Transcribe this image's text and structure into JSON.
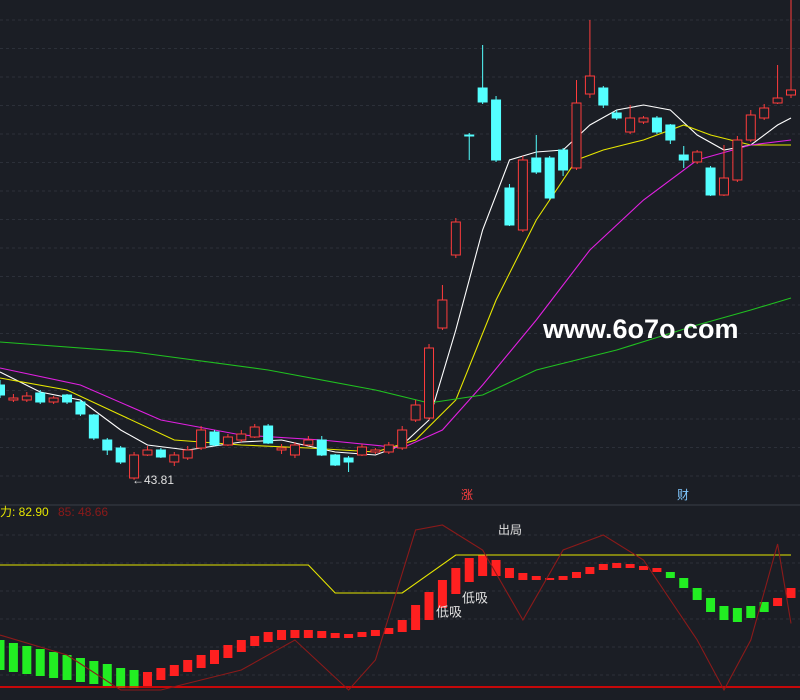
{
  "labels": {
    "low": "←43.81",
    "event1": "涨",
    "event2": "财",
    "watermark": "www.6o7o.com",
    "ind1": "力: 82.90",
    "ind2": "85: 48.66",
    "exit": "出局",
    "buy1": "低吸",
    "buy2": "低吸"
  },
  "chart_data": [
    {
      "type": "candlestick",
      "up_color": "#ff3c3c",
      "down_color": "#54ffff",
      "ylim": [
        42.8,
        67.8
      ],
      "open": [
        48.55,
        47.8,
        47.8,
        48.15,
        47.7,
        48.05,
        47.7,
        47.05,
        45.8,
        45.4,
        43.9,
        45.05,
        45.3,
        44.7,
        44.9,
        45.4,
        46.2,
        45.55,
        45.8,
        45.95,
        46.5,
        45.3,
        45.05,
        45.55,
        45.8,
        45.05,
        44.9,
        45.05,
        45.2,
        45.2,
        45.4,
        46.8,
        46.9,
        51.4,
        55.05,
        61.05,
        63.4,
        62.8,
        58.4,
        56.3,
        59.9,
        59.9,
        60.3,
        59.4,
        63.1,
        63.4,
        62.15,
        61.2,
        61.7,
        61.9,
        61.55,
        60.05,
        59.7,
        59.4,
        58.05,
        58.8,
        60.8,
        61.9,
        62.65,
        63.05
      ],
      "close": [
        48.05,
        47.9,
        48.0,
        47.7,
        47.9,
        47.7,
        47.1,
        45.9,
        45.3,
        44.7,
        45.05,
        45.3,
        44.95,
        45.05,
        45.3,
        46.3,
        45.55,
        45.95,
        46.1,
        46.45,
        45.65,
        45.4,
        45.55,
        45.8,
        45.05,
        44.55,
        44.7,
        45.45,
        45.3,
        45.55,
        46.3,
        47.55,
        50.4,
        52.8,
        56.7,
        61.0,
        62.7,
        59.8,
        56.55,
        59.8,
        59.2,
        57.9,
        59.3,
        62.65,
        64.0,
        62.55,
        61.9,
        61.9,
        61.9,
        61.2,
        60.8,
        59.8,
        60.2,
        58.05,
        58.9,
        60.8,
        62.05,
        62.4,
        62.9,
        63.3
      ],
      "high": [
        48.8,
        48.1,
        48.2,
        48.3,
        48.0,
        48.1,
        47.8,
        47.1,
        45.9,
        45.5,
        45.2,
        45.5,
        45.4,
        45.2,
        45.5,
        46.5,
        46.3,
        46.1,
        46.3,
        46.6,
        46.6,
        45.6,
        45.7,
        46.0,
        46.0,
        45.1,
        45.0,
        45.6,
        45.4,
        45.7,
        46.5,
        47.8,
        50.6,
        53.55,
        56.9,
        61.15,
        65.55,
        63.0,
        58.6,
        60.0,
        61.05,
        60.0,
        60.4,
        63.8,
        66.8,
        63.5,
        62.3,
        62.55,
        62.0,
        62.0,
        61.6,
        60.5,
        60.3,
        59.5,
        60.55,
        61.0,
        62.3,
        62.6,
        64.55,
        67.8
      ],
      "low": [
        47.9,
        47.7,
        47.7,
        47.6,
        47.6,
        47.6,
        47.0,
        45.8,
        45.05,
        44.6,
        43.81,
        45.0,
        44.9,
        44.5,
        44.8,
        45.3,
        45.5,
        45.5,
        45.7,
        45.9,
        45.6,
        45.1,
        44.9,
        45.5,
        45.0,
        44.5,
        44.2,
        45.0,
        45.1,
        45.1,
        45.3,
        46.7,
        46.8,
        51.3,
        54.9,
        59.8,
        62.6,
        59.7,
        56.5,
        56.2,
        59.1,
        57.8,
        59.0,
        59.3,
        62.9,
        62.4,
        61.8,
        61.1,
        61.6,
        61.1,
        60.6,
        59.4,
        59.6,
        58.0,
        58.0,
        58.7,
        60.7,
        61.8,
        62.6,
        62.9
      ],
      "series": [
        {
          "color": "#ffffff",
          "x": [
            0,
            3,
            6,
            9,
            11,
            14,
            18,
            21,
            25,
            28,
            30,
            32,
            34,
            36,
            38,
            40,
            42,
            44,
            46,
            48,
            50,
            52,
            54,
            56,
            58,
            59
          ],
          "values": [
            49.2,
            48.2,
            47.8,
            46.3,
            45.55,
            45.3,
            45.7,
            45.8,
            45.2,
            45.05,
            45.55,
            46.8,
            51.3,
            56.3,
            59.8,
            60.2,
            60.3,
            61.55,
            62.3,
            62.55,
            62.3,
            61.05,
            60.3,
            60.55,
            61.55,
            61.9
          ]
        },
        {
          "color": "#e6e600",
          "x": [
            0,
            5,
            9,
            13,
            18,
            23,
            28,
            31,
            34,
            37,
            40,
            43,
            45,
            48,
            51,
            53,
            56,
            59
          ],
          "values": [
            48.9,
            48.3,
            47.05,
            45.8,
            45.55,
            45.4,
            45.2,
            45.8,
            47.8,
            52.8,
            56.8,
            59.8,
            60.3,
            60.8,
            61.55,
            61.05,
            60.55,
            60.55
          ]
        },
        {
          "color": "#e020e0",
          "x": [
            0,
            6,
            12,
            18,
            24,
            30,
            33,
            36,
            40,
            44,
            48,
            52,
            56,
            59
          ],
          "values": [
            49.4,
            48.55,
            46.8,
            46.05,
            45.8,
            45.4,
            46.3,
            48.55,
            51.8,
            55.3,
            57.8,
            59.8,
            60.55,
            60.8
          ]
        },
        {
          "color": "#20c020",
          "x": [
            0,
            10,
            20,
            28,
            32,
            36,
            40,
            46,
            52,
            56,
            59
          ],
          "values": [
            50.7,
            50.2,
            49.3,
            48.3,
            47.65,
            48.05,
            49.3,
            50.3,
            51.55,
            52.3,
            52.9
          ]
        }
      ]
    },
    {
      "type": "ribbon",
      "ylim": [
        10.4,
        107.9
      ],
      "tops": [
        40.4,
        38.9,
        37.4,
        35.9,
        34.4,
        32.9,
        31.4,
        29.9,
        28.4,
        26.4,
        25.4,
        24.4,
        26.4,
        27.9,
        30.4,
        32.9,
        35.4,
        37.9,
        40.4,
        42.4,
        44.4,
        45.4,
        45.4,
        45.4,
        44.9,
        43.9,
        43.4,
        44.4,
        45.4,
        46.4,
        50.4,
        57.9,
        64.4,
        70.4,
        76.4,
        81.4,
        82.9,
        80.4,
        76.4,
        73.9,
        72.4,
        71.4,
        72.4,
        74.4,
        76.9,
        78.4,
        78.9,
        78.4,
        77.4,
        76.4,
        74.4,
        71.4,
        66.4,
        61.4,
        57.4,
        56.4,
        57.4,
        59.4,
        61.4,
        66.4
      ],
      "bottoms": [
        25.4,
        24.4,
        23.4,
        22.4,
        21.4,
        20.4,
        19.4,
        18.4,
        17.4,
        16.4,
        16.4,
        17.4,
        20.4,
        22.4,
        24.4,
        26.4,
        28.4,
        31.4,
        34.4,
        37.4,
        39.4,
        40.4,
        41.4,
        41.4,
        41.4,
        41.4,
        41.4,
        41.9,
        42.4,
        43.4,
        44.4,
        45.4,
        50.4,
        56.4,
        63.4,
        69.4,
        72.4,
        72.4,
        71.4,
        70.4,
        70.4,
        70.4,
        70.4,
        71.4,
        73.4,
        75.4,
        76.4,
        76.4,
        75.4,
        74.4,
        71.4,
        66.4,
        60.4,
        54.4,
        50.4,
        49.4,
        51.4,
        54.4,
        57.4,
        61.4
      ],
      "colors": [
        "#22ee22",
        "#22ee22",
        "#22ee22",
        "#22ee22",
        "#22ee22",
        "#22ee22",
        "#22ee22",
        "#22ee22",
        "#22ee22",
        "#22ee22",
        "#22ee22",
        "#ff2020",
        "#ff2020",
        "#ff2020",
        "#ff2020",
        "#ff2020",
        "#ff2020",
        "#ff2020",
        "#ff2020",
        "#ff2020",
        "#ff2020",
        "#ff2020",
        "#ff2020",
        "#ff2020",
        "#ff2020",
        "#ff2020",
        "#ff2020",
        "#ff2020",
        "#ff2020",
        "#ff2020",
        "#ff2020",
        "#ff2020",
        "#ff2020",
        "#ff2020",
        "#ff2020",
        "#ff2020",
        "#ff2020",
        "#ff2020",
        "#ff2020",
        "#ff2020",
        "#ff2020",
        "#ff2020",
        "#ff2020",
        "#ff2020",
        "#ff2020",
        "#ff2020",
        "#ff2020",
        "#ff2020",
        "#ff2020",
        "#ff2020",
        "#22ee22",
        "#22ee22",
        "#22ee22",
        "#22ee22",
        "#22ee22",
        "#22ee22",
        "#22ee22",
        "#22ee22",
        "#ff2020",
        "#ff2020"
      ],
      "hline": {
        "value": 16.9,
        "color": "#ff0000"
      },
      "series": [
        {
          "color": "#e6e600",
          "x": [
            0,
            23,
            25,
            30,
            34,
            59
          ],
          "values": [
            77.9,
            77.9,
            63.9,
            63.9,
            82.9,
            82.9
          ]
        },
        {
          "color": "#8b1a1a",
          "x": [
            0,
            5,
            9,
            12,
            18,
            22,
            26,
            28,
            31,
            33,
            36,
            39,
            42,
            45,
            48,
            52,
            54,
            56,
            58,
            59
          ],
          "values": [
            42.9,
            32.9,
            15.4,
            15.4,
            25.4,
            40.4,
            15.4,
            30.4,
            95.4,
            97.9,
            85.4,
            50.4,
            85.4,
            92.9,
            80.4,
            40.4,
            15.4,
            40.4,
            88.4,
            48.66
          ]
        }
      ]
    }
  ]
}
